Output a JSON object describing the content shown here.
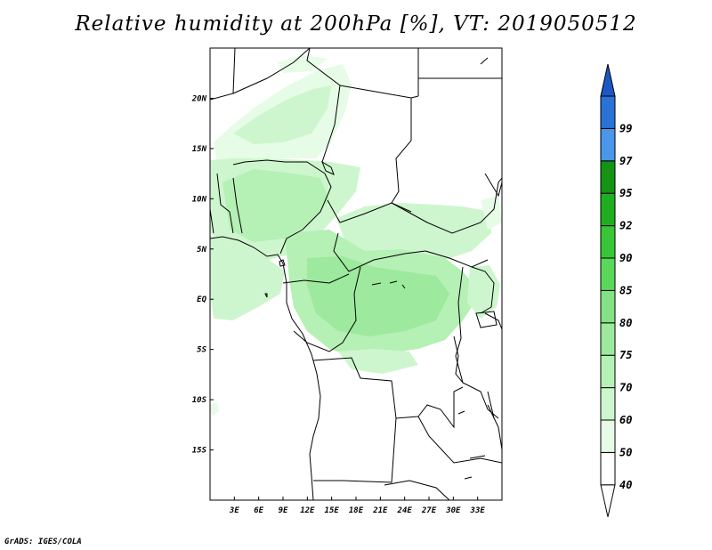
{
  "title": "Relative humidity at 200hPa [%], VT: 2019050512",
  "credit": "GrADS: IGES/COLA",
  "map": {
    "lon_range": [
      0,
      36
    ],
    "lat_range": [
      -20,
      25
    ],
    "lon_ticks": [
      {
        "value": 3,
        "label": "3E"
      },
      {
        "value": 6,
        "label": "6E"
      },
      {
        "value": 9,
        "label": "9E"
      },
      {
        "value": 12,
        "label": "12E"
      },
      {
        "value": 15,
        "label": "15E"
      },
      {
        "value": 18,
        "label": "18E"
      },
      {
        "value": 21,
        "label": "21E"
      },
      {
        "value": 24,
        "label": "24E"
      },
      {
        "value": 27,
        "label": "27E"
      },
      {
        "value": 30,
        "label": "30E"
      },
      {
        "value": 33,
        "label": "33E"
      }
    ],
    "lat_ticks": [
      {
        "value": 20,
        "label": "20N"
      },
      {
        "value": 15,
        "label": "15N"
      },
      {
        "value": 10,
        "label": "10N"
      },
      {
        "value": 5,
        "label": "5N"
      },
      {
        "value": 0,
        "label": "EQ"
      },
      {
        "value": -5,
        "label": "5S"
      },
      {
        "value": -10,
        "label": "10S"
      },
      {
        "value": -15,
        "label": "15S"
      }
    ]
  },
  "colorbar": {
    "levels": [
      {
        "label": "40",
        "color": "#ffffff"
      },
      {
        "label": "50",
        "color": "#e6fce6"
      },
      {
        "label": "60",
        "color": "#cef6ce"
      },
      {
        "label": "70",
        "color": "#b5f0b5"
      },
      {
        "label": "75",
        "color": "#9de99d"
      },
      {
        "label": "80",
        "color": "#84e284"
      },
      {
        "label": "85",
        "color": "#5ad85a"
      },
      {
        "label": "90",
        "color": "#37c637"
      },
      {
        "label": "92",
        "color": "#1fae1f"
      },
      {
        "label": "95",
        "color": "#149314"
      },
      {
        "label": "97",
        "color": "#4a96e8"
      },
      {
        "label": "99",
        "color": "#2a72d6"
      }
    ],
    "top_color": "#1b58c4"
  }
}
